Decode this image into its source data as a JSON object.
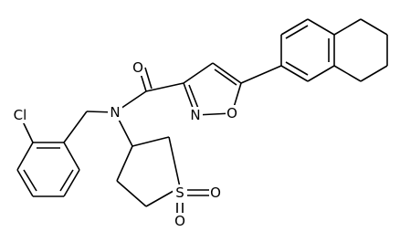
{
  "atoms": [
    {
      "label": "O"
    },
    {
      "label": "N"
    },
    {
      "label": "N"
    },
    {
      "label": "O"
    },
    {
      "label": "Cl"
    },
    {
      "label": "S"
    },
    {
      "label": "O"
    },
    {
      "label": "O"
    }
  ]
}
